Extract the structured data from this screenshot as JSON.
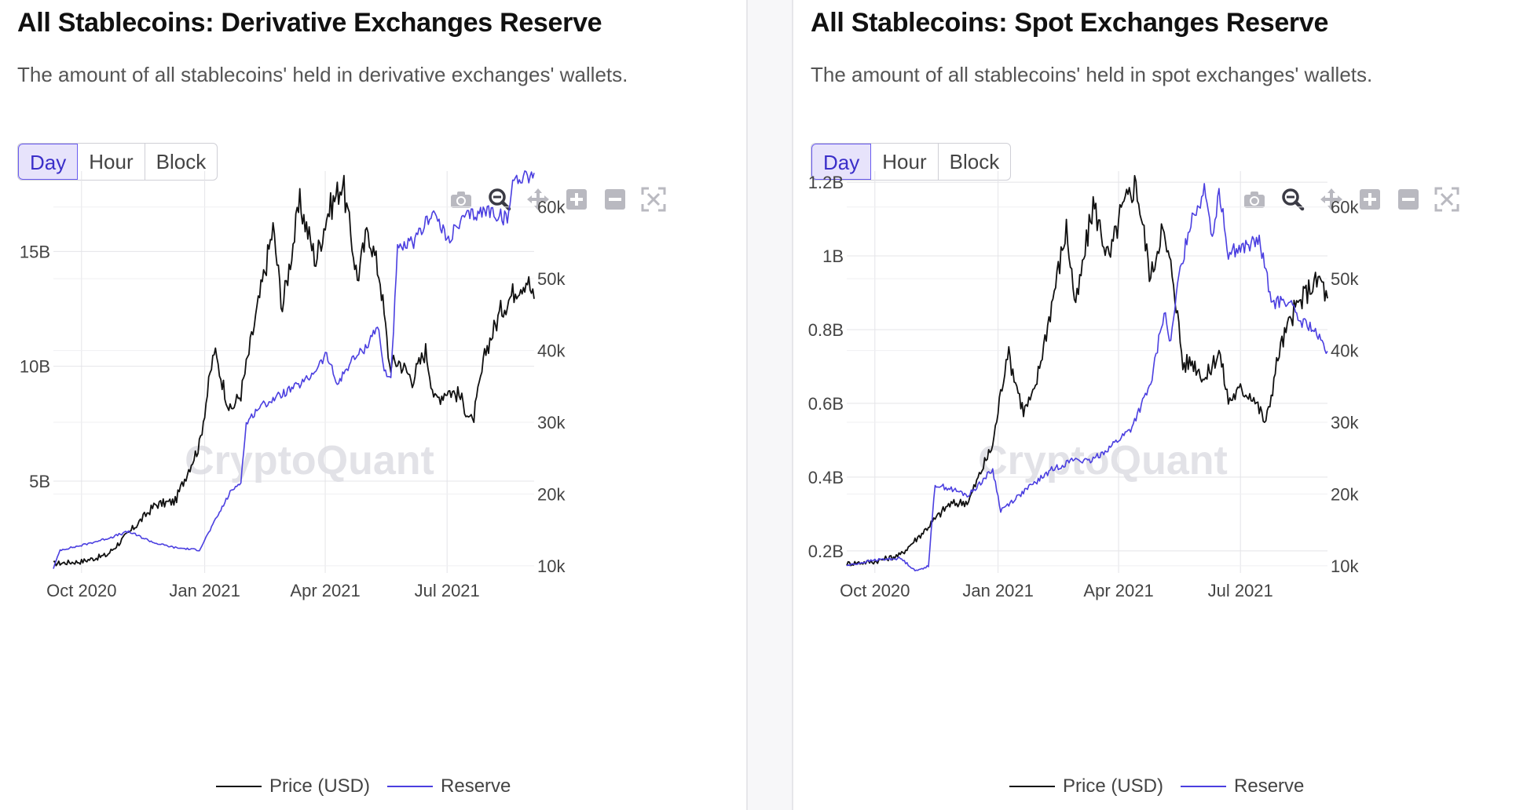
{
  "panels": [
    {
      "title": "All Stablecoins: Derivative Exchanges Reserve",
      "subtitle": "The amount of all stablecoins' held in derivative exchanges' wallets.",
      "buttons": [
        "Day",
        "Hour",
        "Block"
      ],
      "active_button": "Day",
      "watermark": "CryptoQuant",
      "legend": [
        "Price (USD)",
        "Reserve"
      ]
    },
    {
      "title": "All Stablecoins: Spot Exchanges Reserve",
      "subtitle": "The amount of all stablecoins' held in spot exchanges' wallets.",
      "buttons": [
        "Day",
        "Hour",
        "Block"
      ],
      "active_button": "Day",
      "watermark": "CryptoQuant",
      "legend": [
        "Price (USD)",
        "Reserve"
      ]
    }
  ],
  "modebar_icons": [
    "camera-icon",
    "zoom-icon",
    "pan-icon",
    "zoom-in-icon",
    "zoom-out-icon",
    "autoscale-icon"
  ],
  "colors": {
    "price": "#111111",
    "reserve": "#4b3fe0",
    "accent": "#3b2fc9",
    "grid": "#e4e4e8"
  },
  "chart_data": [
    {
      "type": "line",
      "title": "All Stablecoins: Derivative Exchanges Reserve",
      "x_ticks": [
        "Oct 2020",
        "Jan 2021",
        "Apr 2021",
        "Jul 2021"
      ],
      "y_left_ticks": [
        "5B",
        "10B",
        "15B"
      ],
      "y_left_tick_values": [
        5000000000,
        10000000000,
        15000000000
      ],
      "y_left_range": [
        1000000000,
        18500000000
      ],
      "y_right_ticks": [
        "10k",
        "20k",
        "30k",
        "40k",
        "50k",
        "60k"
      ],
      "y_right_tick_values": [
        10000,
        20000,
        30000,
        40000,
        50000,
        60000
      ],
      "y_right_range": [
        9000,
        65000
      ],
      "x_range": [
        "2020-09-10",
        "2021-09-04"
      ],
      "grid": true,
      "legend_position": "bottom",
      "series": [
        {
          "name": "Price (USD)",
          "axis": "right",
          "x": [
            "2020-09-10",
            "2020-10-01",
            "2020-10-20",
            "2020-11-05",
            "2020-11-25",
            "2020-12-10",
            "2020-12-20",
            "2020-12-28",
            "2021-01-08",
            "2021-01-20",
            "2021-01-28",
            "2021-02-08",
            "2021-02-21",
            "2021-02-28",
            "2021-03-13",
            "2021-03-25",
            "2021-04-02",
            "2021-04-14",
            "2021-04-25",
            "2021-05-03",
            "2021-05-12",
            "2021-05-19",
            "2021-05-26",
            "2021-06-05",
            "2021-06-15",
            "2021-06-22",
            "2021-07-01",
            "2021-07-10",
            "2021-07-20",
            "2021-07-30",
            "2021-08-10",
            "2021-08-22",
            "2021-08-30",
            "2021-09-04"
          ],
          "values": [
            10300,
            10600,
            11500,
            14500,
            18500,
            19000,
            23500,
            26800,
            40000,
            31500,
            34000,
            44500,
            57000,
            46000,
            60500,
            52500,
            58800,
            63500,
            50000,
            57000,
            50000,
            38000,
            38500,
            36000,
            40000,
            33000,
            34500,
            33800,
            29800,
            40000,
            45500,
            48800,
            50000,
            46800
          ]
        },
        {
          "name": "Reserve",
          "axis": "left",
          "x": [
            "2020-09-10",
            "2020-09-15",
            "2020-10-01",
            "2020-10-20",
            "2020-11-05",
            "2020-11-25",
            "2020-12-10",
            "2020-12-28",
            "2021-01-08",
            "2021-01-20",
            "2021-01-28",
            "2021-02-01",
            "2021-02-10",
            "2021-02-28",
            "2021-03-13",
            "2021-03-20",
            "2021-04-02",
            "2021-04-10",
            "2021-04-20",
            "2021-05-01",
            "2021-05-10",
            "2021-05-15",
            "2021-05-20",
            "2021-05-25",
            "2021-06-08",
            "2021-06-20",
            "2021-07-01",
            "2021-07-15",
            "2021-08-01",
            "2021-08-15",
            "2021-08-20",
            "2021-09-04"
          ],
          "values": [
            1200000000,
            2000000000,
            2200000000,
            2500000000,
            2800000000,
            2300000000,
            2100000000,
            2000000000,
            3200000000,
            4500000000,
            5000000000,
            7500000000,
            8200000000,
            8800000000,
            9200000000,
            9500000000,
            10500000000,
            9200000000,
            10200000000,
            10800000000,
            11800000000,
            9800000000,
            9500000000,
            15000000000,
            15500000000,
            16800000000,
            15500000000,
            16500000000,
            16800000000,
            16400000000,
            18200000000,
            18400000000
          ]
        }
      ]
    },
    {
      "type": "line",
      "title": "All Stablecoins: Spot Exchanges Reserve",
      "x_ticks": [
        "Oct 2020",
        "Jan 2021",
        "Apr 2021",
        "Jul 2021"
      ],
      "y_left_ticks": [
        "0.2B",
        "0.4B",
        "0.6B",
        "0.8B",
        "1B",
        "1.2B"
      ],
      "y_left_tick_values": [
        200000000,
        400000000,
        600000000,
        800000000,
        1000000000,
        1200000000
      ],
      "y_left_range": [
        140000000,
        1230000000
      ],
      "y_right_ticks": [
        "10k",
        "20k",
        "30k",
        "40k",
        "50k",
        "60k"
      ],
      "y_right_tick_values": [
        10000,
        20000,
        30000,
        40000,
        50000,
        60000
      ],
      "y_right_range": [
        9000,
        65000
      ],
      "x_range": [
        "2020-09-10",
        "2021-09-04"
      ],
      "grid": true,
      "legend_position": "bottom",
      "series": [
        {
          "name": "Price (USD)",
          "axis": "right",
          "x": [
            "2020-09-10",
            "2020-10-01",
            "2020-10-20",
            "2020-11-05",
            "2020-11-25",
            "2020-12-10",
            "2020-12-20",
            "2020-12-28",
            "2021-01-08",
            "2021-01-20",
            "2021-01-28",
            "2021-02-08",
            "2021-02-21",
            "2021-02-28",
            "2021-03-13",
            "2021-03-25",
            "2021-04-02",
            "2021-04-14",
            "2021-04-25",
            "2021-05-03",
            "2021-05-12",
            "2021-05-19",
            "2021-05-26",
            "2021-06-05",
            "2021-06-15",
            "2021-06-22",
            "2021-07-01",
            "2021-07-10",
            "2021-07-20",
            "2021-07-30",
            "2021-08-10",
            "2021-08-22",
            "2021-08-30",
            "2021-09-04"
          ],
          "values": [
            10300,
            10600,
            11500,
            14500,
            18500,
            19000,
            23500,
            26800,
            40000,
            31500,
            34000,
            44500,
            57000,
            46000,
            60500,
            52500,
            58800,
            63500,
            50000,
            57000,
            50000,
            38000,
            38500,
            36000,
            40000,
            33000,
            34500,
            33800,
            29800,
            40000,
            45500,
            48800,
            50000,
            46800
          ]
        },
        {
          "name": "Reserve",
          "axis": "left",
          "x": [
            "2020-09-10",
            "2020-10-01",
            "2020-10-20",
            "2020-11-01",
            "2020-11-10",
            "2020-11-15",
            "2020-11-25",
            "2020-12-10",
            "2020-12-20",
            "2020-12-28",
            "2021-01-03",
            "2021-01-20",
            "2021-02-10",
            "2021-02-28",
            "2021-03-10",
            "2021-03-25",
            "2021-04-10",
            "2021-04-25",
            "2021-05-05",
            "2021-05-10",
            "2021-05-15",
            "2021-05-25",
            "2021-06-05",
            "2021-06-10",
            "2021-06-15",
            "2021-06-22",
            "2021-07-01",
            "2021-07-15",
            "2021-07-25",
            "2021-08-05",
            "2021-08-15",
            "2021-08-22",
            "2021-09-04"
          ],
          "values": [
            160000000,
            175000000,
            180000000,
            145000000,
            160000000,
            380000000,
            370000000,
            350000000,
            390000000,
            420000000,
            310000000,
            360000000,
            420000000,
            450000000,
            440000000,
            480000000,
            530000000,
            650000000,
            850000000,
            760000000,
            920000000,
            1100000000,
            1180000000,
            1050000000,
            1180000000,
            1010000000,
            1020000000,
            1040000000,
            870000000,
            880000000,
            820000000,
            810000000,
            740000000
          ]
        }
      ]
    }
  ]
}
